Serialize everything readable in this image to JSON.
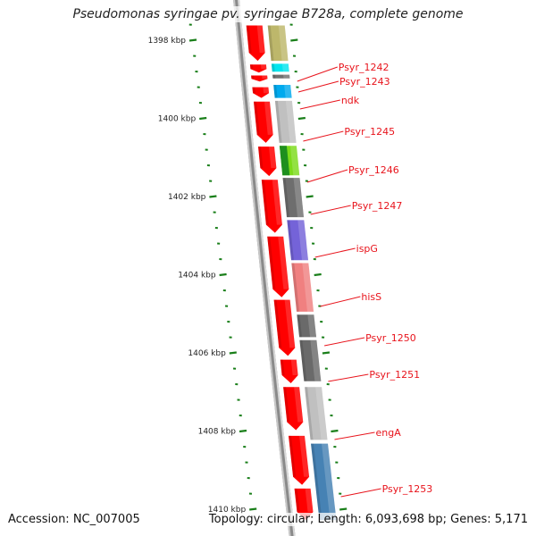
{
  "title": "Pseudomonas syringae pv. syringae B728a, complete genome",
  "footer": {
    "accession": "Accession: NC_007005",
    "summary": "Topology: circular; Length: 6,093,698 bp; Genes: 5,171"
  },
  "colors": {
    "backbone": "#8c8c8c",
    "cds": "#ff0000",
    "label": "#e8141c",
    "tick": "#1a7f1a"
  },
  "ruler": {
    "unit": "kbp",
    "start_kbp": 1397.9,
    "end_kbp": 1410.05,
    "major_labels": [
      "1398 kbp",
      "1400 kbp",
      "1402 kbp",
      "1404 kbp",
      "1406 kbp",
      "1408 kbp",
      "1410 kbp"
    ],
    "major_values_kbp": [
      1398,
      1400,
      1402,
      1404,
      1406,
      1408,
      1410
    ],
    "minor_step_kbp": 0.4
  },
  "cds_track": [
    {
      "start_kbp": 1397.6,
      "end_kbp": 1398.55
    },
    {
      "start_kbp": 1398.6,
      "end_kbp": 1398.85
    },
    {
      "start_kbp": 1398.88,
      "end_kbp": 1399.08
    },
    {
      "start_kbp": 1399.18,
      "end_kbp": 1399.5
    },
    {
      "start_kbp": 1399.55,
      "end_kbp": 1400.65
    },
    {
      "start_kbp": 1400.7,
      "end_kbp": 1401.5
    },
    {
      "start_kbp": 1401.55,
      "end_kbp": 1402.95
    },
    {
      "start_kbp": 1403.0,
      "end_kbp": 1404.6
    },
    {
      "start_kbp": 1404.62,
      "end_kbp": 1406.1
    },
    {
      "start_kbp": 1406.15,
      "end_kbp": 1406.8
    },
    {
      "start_kbp": 1406.85,
      "end_kbp": 1408.0
    },
    {
      "start_kbp": 1408.1,
      "end_kbp": 1409.4
    },
    {
      "start_kbp": 1409.45,
      "end_kbp": 1410.3
    }
  ],
  "genes": [
    {
      "name": "",
      "start_kbp": 1397.6,
      "end_kbp": 1398.55,
      "color": "#bdb76b"
    },
    {
      "name": "Psyr_1242",
      "start_kbp": 1398.58,
      "end_kbp": 1398.83,
      "color": "#00e5ee",
      "label_kbp": 1398.4
    },
    {
      "name": "Psyr_1243",
      "start_kbp": 1398.86,
      "end_kbp": 1399.0,
      "color": "#707070",
      "label_kbp": 1398.72
    },
    {
      "name": "ndk",
      "start_kbp": 1399.12,
      "end_kbp": 1399.5,
      "color": "#00aaee",
      "label_kbp": 1399.15
    },
    {
      "name": "Psyr_1245",
      "start_kbp": 1399.53,
      "end_kbp": 1400.65,
      "color": "#c0c0c0",
      "label_kbp": 1399.95
    },
    {
      "name": "Psyr_1246",
      "start_kbp": 1400.68,
      "end_kbp": 1401.48,
      "color": "#7cdb1a",
      "label_kbp": 1400.95
    },
    {
      "name": "Psyr_1247",
      "start_kbp": 1401.5,
      "end_kbp": 1402.55,
      "color": "#6e6e6e",
      "label_kbp": 1401.95
    },
    {
      "name": "ispG",
      "start_kbp": 1402.58,
      "end_kbp": 1403.65,
      "color": "#7463d8",
      "label_kbp": 1403.0
    },
    {
      "name": "hisS",
      "start_kbp": 1403.68,
      "end_kbp": 1404.97,
      "color": "#f08080",
      "label_kbp": 1404.3
    },
    {
      "name": "Psyr_1250",
      "start_kbp": 1405.0,
      "end_kbp": 1405.62,
      "color": "#6a6a6a",
      "label_kbp": 1405.25
    },
    {
      "name": "Psyr_1251",
      "start_kbp": 1405.65,
      "end_kbp": 1406.75,
      "color": "#6a6a6a",
      "label_kbp": 1406.0
    },
    {
      "name": "engA",
      "start_kbp": 1406.85,
      "end_kbp": 1408.25,
      "color": "#c0c0c0",
      "label_kbp": 1407.5
    },
    {
      "name": "Psyr_1253",
      "start_kbp": 1408.3,
      "end_kbp": 1410.3,
      "color": "#4682b4",
      "label_kbp": 1408.85
    }
  ]
}
